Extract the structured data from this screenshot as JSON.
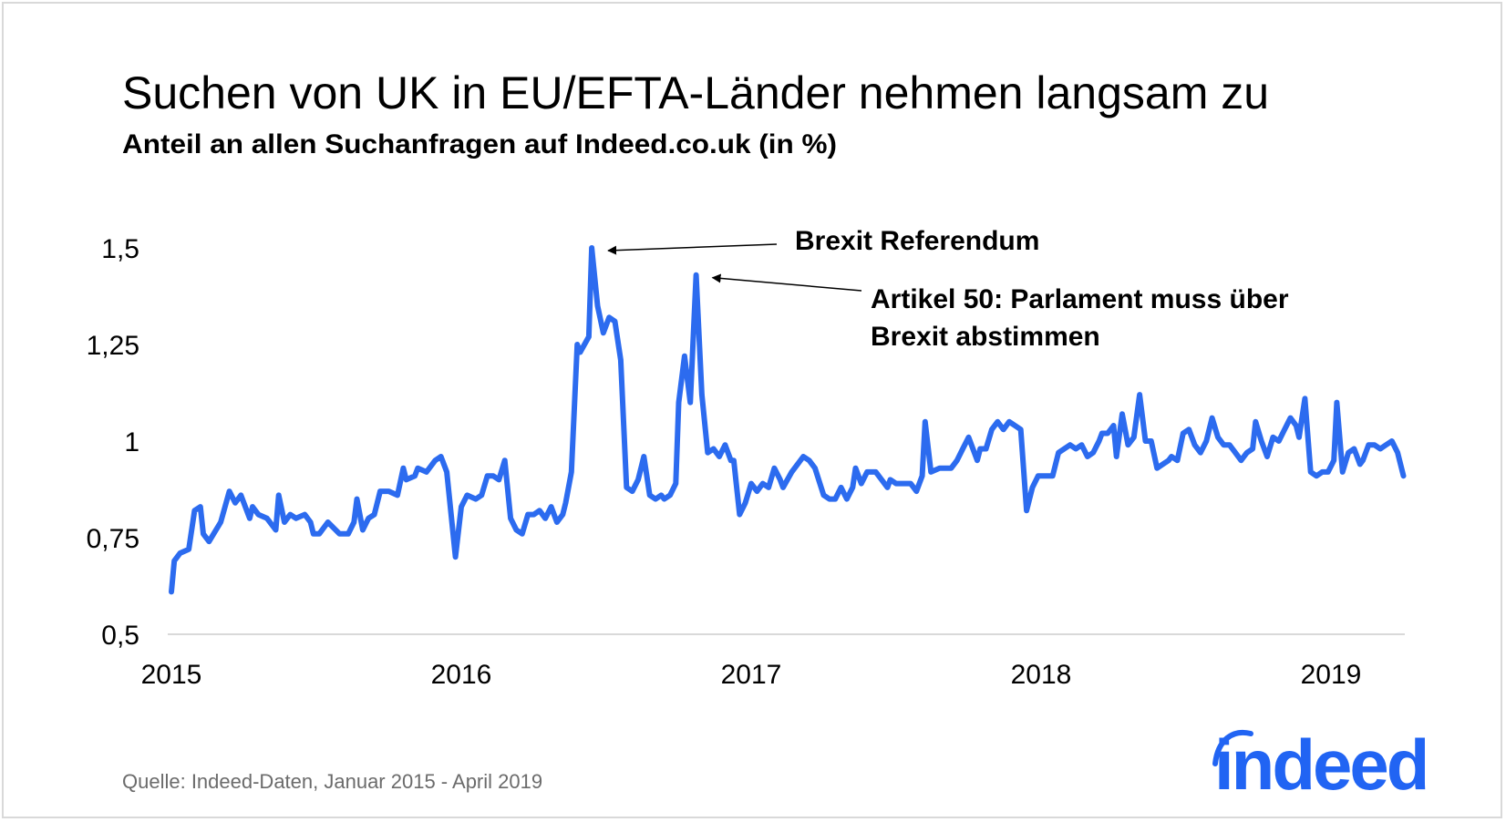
{
  "chart_data": {
    "type": "line",
    "title": "Suchen von UK in EU/EFTA-Länder nehmen langsam zu",
    "subtitle": "Anteil an allen Suchanfragen auf Indeed.co.uk (in %)",
    "xlabel": "",
    "ylabel": "",
    "x_ticks": [
      "2015",
      "2016",
      "2017",
      "2018",
      "2019"
    ],
    "y_ticks": [
      "0,5",
      "0,75",
      "1",
      "1,25",
      "1,5"
    ],
    "ylim": [
      0.5,
      1.5
    ],
    "xlim": [
      2015,
      2019.25
    ],
    "grid": false,
    "line_color": "#2c6bef",
    "annotations": [
      {
        "text_lines": [
          "Brexit Referendum"
        ],
        "x": 2016.45,
        "y": 1.5
      },
      {
        "text_lines": [
          "Artikel 50: Parlament muss über",
          "Brexit abstimmen"
        ],
        "x": 2016.81,
        "y": 1.43
      }
    ],
    "x": [
      2015.0,
      2015.01,
      2015.03,
      2015.06,
      2015.08,
      2015.1,
      2015.11,
      2015.13,
      2015.17,
      2015.2,
      2015.22,
      2015.24,
      2015.27,
      2015.28,
      2015.3,
      2015.33,
      2015.36,
      2015.37,
      2015.39,
      2015.41,
      2015.43,
      2015.46,
      2015.48,
      2015.49,
      2015.51,
      2015.54,
      2015.58,
      2015.61,
      2015.63,
      2015.64,
      2015.66,
      2015.68,
      2015.7,
      2015.72,
      2015.75,
      2015.78,
      2015.8,
      2015.81,
      2015.84,
      2015.85,
      2015.88,
      2015.91,
      2015.93,
      2015.95,
      2015.98,
      2016.0,
      2016.02,
      2016.05,
      2016.07,
      2016.09,
      2016.11,
      2016.13,
      2016.15,
      2016.17,
      2016.19,
      2016.21,
      2016.23,
      2016.25,
      2016.27,
      2016.29,
      2016.31,
      2016.33,
      2016.35,
      2016.36,
      2016.38,
      2016.4,
      2016.41,
      2016.44,
      2016.45,
      2016.47,
      2016.49,
      2016.51,
      2016.53,
      2016.55,
      2016.57,
      2016.59,
      2016.61,
      2016.63,
      2016.65,
      2016.67,
      2016.69,
      2016.7,
      2016.72,
      2016.74,
      2016.75,
      2016.77,
      2016.79,
      2016.81,
      2016.83,
      2016.85,
      2016.87,
      2016.89,
      2016.91,
      2016.93,
      2016.94,
      2016.96,
      2016.98,
      2017.0,
      2017.02,
      2017.04,
      2017.06,
      2017.08,
      2017.1,
      2017.11,
      2017.14,
      2017.16,
      2017.18,
      2017.2,
      2017.22,
      2017.25,
      2017.27,
      2017.29,
      2017.31,
      2017.33,
      2017.35,
      2017.36,
      2017.38,
      2017.4,
      2017.43,
      2017.45,
      2017.47,
      2017.48,
      2017.5,
      2017.53,
      2017.55,
      2017.57,
      2017.59,
      2017.6,
      2017.62,
      2017.65,
      2017.67,
      2017.69,
      2017.71,
      2017.73,
      2017.75,
      2017.78,
      2017.79,
      2017.81,
      2017.83,
      2017.85,
      2017.87,
      2017.89,
      2017.93,
      2017.95,
      2017.97,
      2017.99,
      2018.02,
      2018.04,
      2018.06,
      2018.08,
      2018.1,
      2018.12,
      2018.14,
      2018.16,
      2018.18,
      2018.2,
      2018.21,
      2018.23,
      2018.25,
      2018.26,
      2018.28,
      2018.3,
      2018.32,
      2018.34,
      2018.36,
      2018.38,
      2018.4,
      2018.42,
      2018.44,
      2018.45,
      2018.47,
      2018.49,
      2018.51,
      2018.53,
      2018.55,
      2018.57,
      2018.59,
      2018.61,
      2018.63,
      2018.65,
      2018.67,
      2018.69,
      2018.71,
      2018.73,
      2018.74,
      2018.76,
      2018.78,
      2018.8,
      2018.82,
      2018.84,
      2018.86,
      2018.88,
      2018.89,
      2018.91,
      2018.93,
      2018.95,
      2018.97,
      2018.99,
      2019.01,
      2019.02,
      2019.04,
      2019.06,
      2019.08,
      2019.1,
      2019.11,
      2019.13,
      2019.15,
      2019.17,
      2019.19,
      2019.21,
      2019.23,
      2019.25
    ],
    "y": [
      0.61,
      0.69,
      0.71,
      0.72,
      0.82,
      0.83,
      0.76,
      0.74,
      0.79,
      0.87,
      0.84,
      0.86,
      0.8,
      0.83,
      0.81,
      0.8,
      0.77,
      0.86,
      0.79,
      0.81,
      0.8,
      0.81,
      0.79,
      0.76,
      0.76,
      0.79,
      0.76,
      0.76,
      0.79,
      0.85,
      0.77,
      0.8,
      0.81,
      0.87,
      0.87,
      0.86,
      0.93,
      0.9,
      0.91,
      0.93,
      0.92,
      0.95,
      0.96,
      0.92,
      0.7,
      0.83,
      0.86,
      0.85,
      0.86,
      0.91,
      0.91,
      0.9,
      0.95,
      0.8,
      0.77,
      0.76,
      0.81,
      0.81,
      0.82,
      0.8,
      0.83,
      0.79,
      0.81,
      0.84,
      0.92,
      1.25,
      1.23,
      1.27,
      1.5,
      1.35,
      1.28,
      1.32,
      1.31,
      1.21,
      0.88,
      0.87,
      0.9,
      0.96,
      0.86,
      0.85,
      0.86,
      0.85,
      0.86,
      0.89,
      1.1,
      1.22,
      1.1,
      1.43,
      1.12,
      0.97,
      0.98,
      0.96,
      0.99,
      0.95,
      0.95,
      0.81,
      0.84,
      0.89,
      0.87,
      0.89,
      0.88,
      0.93,
      0.9,
      0.88,
      0.92,
      0.94,
      0.96,
      0.95,
      0.93,
      0.86,
      0.85,
      0.85,
      0.88,
      0.85,
      0.88,
      0.93,
      0.89,
      0.92,
      0.92,
      0.9,
      0.88,
      0.9,
      0.89,
      0.89,
      0.89,
      0.87,
      0.91,
      1.05,
      0.92,
      0.93,
      0.93,
      0.93,
      0.95,
      0.98,
      1.01,
      0.95,
      0.98,
      0.98,
      1.03,
      1.05,
      1.03,
      1.05,
      1.03,
      0.82,
      0.88,
      0.91,
      0.91,
      0.91,
      0.97,
      0.98,
      0.99,
      0.98,
      0.99,
      0.96,
      0.97,
      1.0,
      1.02,
      1.02,
      1.04,
      0.96,
      1.07,
      0.99,
      1.01,
      1.12,
      1.0,
      1.0,
      0.93,
      0.94,
      0.95,
      0.96,
      0.95,
      1.02,
      1.03,
      0.99,
      0.97,
      1.0,
      1.06,
      1.01,
      0.99,
      0.99,
      0.97,
      0.95,
      0.97,
      0.98,
      1.05,
      1.0,
      0.96,
      1.01,
      1.0,
      1.03,
      1.06,
      1.04,
      1.01,
      1.11,
      0.92,
      0.91,
      0.92,
      0.92,
      0.95,
      1.1,
      0.92,
      0.97,
      0.98,
      0.94,
      0.95,
      0.99,
      0.99,
      0.98,
      0.99,
      1.0,
      0.97,
      0.91
    ]
  },
  "source": "Quelle: Indeed-Daten,  Januar 2015 - April 2019",
  "logo": {
    "text": "indeed",
    "color": "#2164f3"
  }
}
